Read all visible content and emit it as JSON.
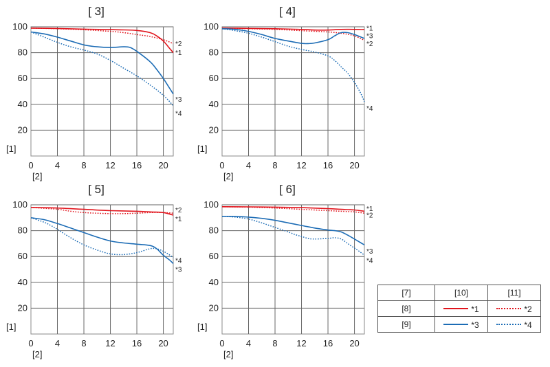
{
  "colors": {
    "red": "#e1141c",
    "blue": "#1c6cb5",
    "grid": "#666666"
  },
  "chart_data": [
    {
      "type": "line",
      "title": "[ 3]",
      "ylabel": "[1]",
      "xlabel": "[2]",
      "xlim": [
        0,
        21.5
      ],
      "ylim": [
        0,
        100
      ],
      "xticks": [
        "0",
        "4",
        "8",
        "12",
        "16",
        "20"
      ],
      "yticks": [
        "20",
        "40",
        "60",
        "80",
        "100"
      ],
      "series": [
        {
          "name": "*1",
          "color": "red",
          "style": "solid",
          "x": [
            0,
            4,
            8,
            12,
            14,
            16,
            18,
            19,
            20,
            21,
            21.5
          ],
          "y": [
            99,
            98.7,
            98.2,
            97.8,
            97.6,
            97.2,
            95.5,
            93,
            89,
            83,
            80
          ]
        },
        {
          "name": "*2",
          "color": "red",
          "style": "dotted",
          "x": [
            0,
            4,
            8,
            12,
            14,
            16,
            18,
            20,
            21.5
          ],
          "y": [
            99,
            98.5,
            97.7,
            96.5,
            95.5,
            94,
            92.5,
            90,
            87
          ]
        },
        {
          "name": "*3",
          "color": "blue",
          "style": "solid",
          "x": [
            0,
            2,
            4,
            6,
            8,
            10,
            12,
            14,
            15,
            16,
            18,
            19,
            20,
            21,
            21.5
          ],
          "y": [
            96,
            94.5,
            92,
            89,
            86,
            84.5,
            84,
            84.5,
            84,
            81,
            73,
            67,
            60,
            52,
            48
          ]
        },
        {
          "name": "*4",
          "color": "blue",
          "style": "dotted",
          "x": [
            0,
            2,
            4,
            6,
            8,
            10,
            12,
            14,
            16,
            18,
            20,
            21.5
          ],
          "y": [
            96,
            92,
            88,
            84.5,
            82,
            79,
            74,
            68,
            62,
            55,
            47,
            39
          ]
        }
      ],
      "end_labels": [
        "*2",
        "*1",
        "*3",
        "*4"
      ],
      "end_label_values": [
        87,
        80,
        44,
        33
      ]
    },
    {
      "type": "line",
      "title": "[ 4]",
      "ylabel": "[1]",
      "xlabel": "[2]",
      "xlim": [
        0,
        21.5
      ],
      "ylim": [
        0,
        100
      ],
      "xticks": [
        "0",
        "4",
        "8",
        "12",
        "16",
        "20"
      ],
      "yticks": [
        "20",
        "40",
        "60",
        "80",
        "100"
      ],
      "series": [
        {
          "name": "*1",
          "color": "red",
          "style": "solid",
          "x": [
            0,
            4,
            8,
            12,
            14,
            16,
            18,
            20,
            21.5
          ],
          "y": [
            99,
            98.8,
            98.5,
            98,
            97.5,
            97.5,
            98,
            98,
            97.8
          ]
        },
        {
          "name": "*2",
          "color": "red",
          "style": "dotted",
          "x": [
            0,
            4,
            8,
            12,
            16,
            18,
            20,
            21.5
          ],
          "y": [
            99,
            98.5,
            98,
            97,
            96,
            95,
            93,
            89.5
          ]
        },
        {
          "name": "*3",
          "color": "blue",
          "style": "solid",
          "x": [
            0,
            2,
            4,
            6,
            8,
            10,
            12,
            13,
            14,
            16,
            17,
            18,
            19,
            20,
            21,
            21.5
          ],
          "y": [
            98.5,
            98,
            96.5,
            94,
            91,
            89,
            87.2,
            87,
            87.5,
            90,
            93,
            95.5,
            95.5,
            94,
            92,
            91
          ]
        },
        {
          "name": "*4",
          "color": "blue",
          "style": "dotted",
          "x": [
            0,
            2,
            4,
            6,
            8,
            10,
            12,
            14,
            16,
            17,
            18,
            19,
            20,
            21,
            21.5
          ],
          "y": [
            98.5,
            97,
            95,
            92,
            88.5,
            85,
            82.5,
            80.5,
            77.5,
            74,
            69,
            64,
            57,
            48,
            42
          ]
        }
      ],
      "end_labels": [
        "*1",
        "*3",
        "*2",
        "*4"
      ],
      "end_label_values": [
        99,
        93,
        87,
        37
      ]
    },
    {
      "type": "line",
      "title": "[ 5]",
      "ylabel": "[1]",
      "xlabel": "[2]",
      "xlim": [
        0,
        21.5
      ],
      "ylim": [
        0,
        100
      ],
      "xticks": [
        "0",
        "4",
        "8",
        "12",
        "16",
        "20"
      ],
      "yticks": [
        "20",
        "40",
        "60",
        "80",
        "100"
      ],
      "series": [
        {
          "name": "*1",
          "color": "red",
          "style": "solid",
          "x": [
            0,
            4,
            8,
            12,
            16,
            18,
            20,
            21.5
          ],
          "y": [
            98,
            97.5,
            96.5,
            95.5,
            95,
            94.5,
            94,
            92
          ]
        },
        {
          "name": "*2",
          "color": "red",
          "style": "dotted",
          "x": [
            0,
            4,
            6,
            8,
            10,
            12,
            14,
            16,
            18,
            20,
            21.5
          ],
          "y": [
            98,
            96.5,
            95,
            94,
            93.5,
            93.2,
            93.2,
            93.5,
            94,
            94,
            93.5
          ]
        },
        {
          "name": "*3",
          "color": "blue",
          "style": "solid",
          "x": [
            0,
            2,
            4,
            6,
            8,
            10,
            12,
            14,
            16,
            18,
            19,
            20,
            21,
            21.5
          ],
          "y": [
            90,
            88.5,
            85.5,
            82,
            78.5,
            75,
            72,
            70.5,
            69.5,
            68.5,
            66,
            61,
            57,
            54.5
          ]
        },
        {
          "name": "*4",
          "color": "blue",
          "style": "dotted",
          "x": [
            0,
            2,
            3,
            4,
            6,
            8,
            10,
            12,
            14,
            16,
            18,
            19,
            20,
            21,
            21.5
          ],
          "y": [
            90,
            86.5,
            84,
            81,
            74.5,
            69,
            65,
            62,
            61.5,
            63,
            66,
            66,
            64,
            61,
            59
          ]
        }
      ],
      "end_labels": [
        "*2",
        "*1",
        "*4",
        "*3"
      ],
      "end_label_values": [
        96,
        89,
        57,
        50
      ]
    },
    {
      "type": "line",
      "title": "[ 6]",
      "ylabel": "[1]",
      "xlabel": "[2]",
      "xlim": [
        0,
        21.5
      ],
      "ylim": [
        0,
        100
      ],
      "xticks": [
        "0",
        "4",
        "8",
        "12",
        "16",
        "20"
      ],
      "yticks": [
        "20",
        "40",
        "60",
        "80",
        "100"
      ],
      "series": [
        {
          "name": "*1",
          "color": "red",
          "style": "solid",
          "x": [
            0,
            4,
            8,
            12,
            16,
            18,
            20,
            21.5
          ],
          "y": [
            98.5,
            98.4,
            98.2,
            97.8,
            97,
            96.5,
            96,
            95
          ]
        },
        {
          "name": "*2",
          "color": "red",
          "style": "dotted",
          "x": [
            0,
            4,
            8,
            12,
            16,
            18,
            20,
            21.5
          ],
          "y": [
            98.5,
            98.2,
            97.5,
            96.5,
            95.5,
            95,
            94.5,
            93.5
          ]
        },
        {
          "name": "*3",
          "color": "blue",
          "style": "solid",
          "x": [
            0,
            2,
            4,
            6,
            8,
            10,
            12,
            14,
            16,
            17,
            18,
            19,
            20,
            21,
            21.5
          ],
          "y": [
            91,
            91,
            90.5,
            89.5,
            88,
            86,
            84,
            82,
            80.5,
            80,
            79,
            76.5,
            73.5,
            70.5,
            69
          ]
        },
        {
          "name": "*4",
          "color": "blue",
          "style": "dotted",
          "x": [
            0,
            2,
            4,
            6,
            8,
            10,
            11,
            12,
            13,
            14,
            16,
            17,
            18,
            19,
            20,
            21,
            21.5
          ],
          "y": [
            91,
            90.5,
            89,
            86,
            82.5,
            79,
            77,
            75.5,
            74,
            73.5,
            74,
            74.5,
            73.5,
            70,
            66.5,
            63,
            61
          ]
        }
      ],
      "end_labels": [
        "*1",
        "*2",
        "*3",
        "*4"
      ],
      "end_label_values": [
        97,
        92,
        64,
        57
      ]
    }
  ],
  "legend": {
    "header": [
      "[7]",
      "[10]",
      "[11]"
    ],
    "rows": [
      {
        "label": "[8]",
        "items": [
          {
            "text": "*1",
            "color": "red",
            "style": "solid"
          },
          {
            "text": "*2",
            "color": "red",
            "style": "dotted"
          }
        ]
      },
      {
        "label": "[9]",
        "items": [
          {
            "text": "*3",
            "color": "blue",
            "style": "solid"
          },
          {
            "text": "*4",
            "color": "blue",
            "style": "dotted"
          }
        ]
      }
    ]
  }
}
